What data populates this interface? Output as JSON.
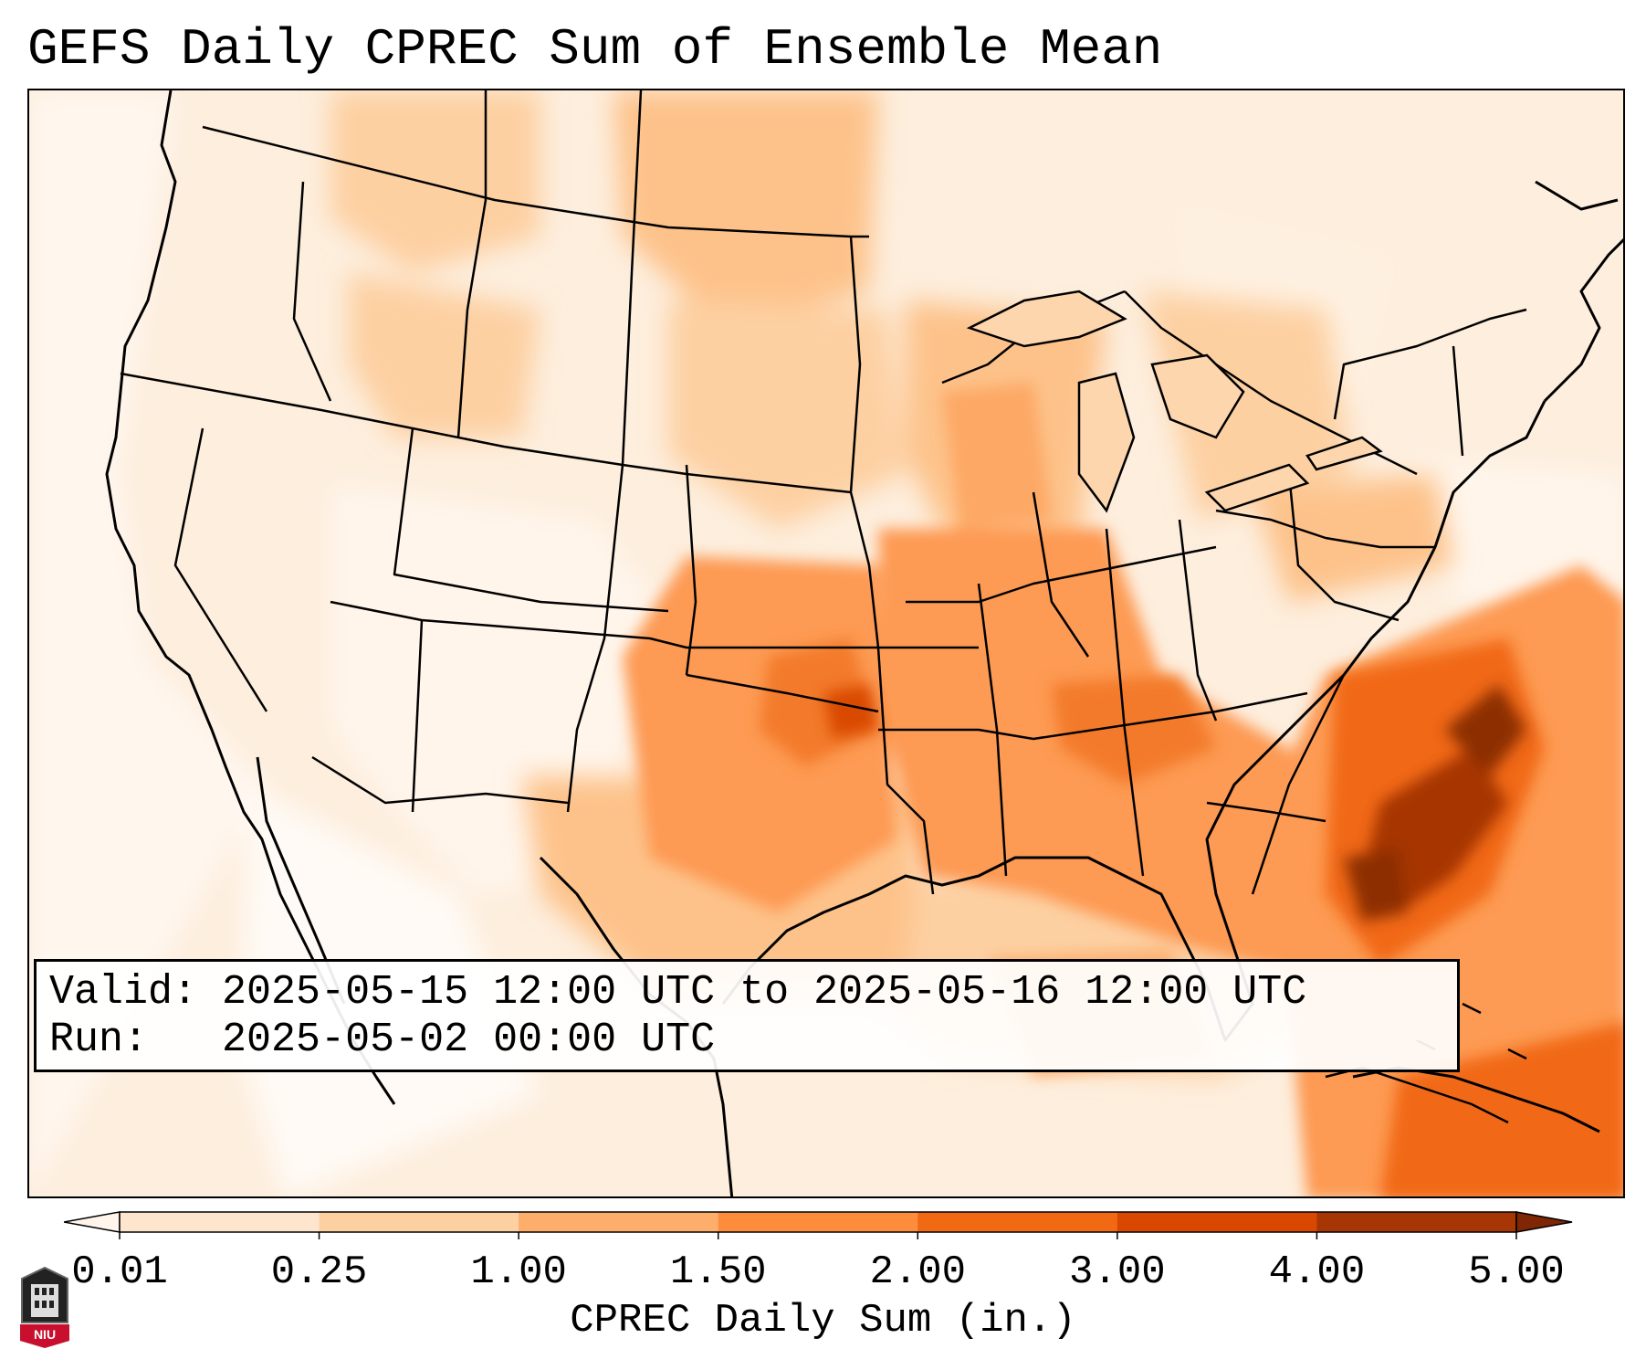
{
  "title": "GEFS Daily CPREC Sum of Ensemble Mean",
  "info_box": {
    "valid_label": "Valid:",
    "valid_value": "2025-05-15 12:00 UTC to 2025-05-16 12:00 UTC",
    "run_label": "Run:",
    "run_value": "2025-05-02 00:00 UTC"
  },
  "colorbar": {
    "label": "CPREC Daily Sum (in.)",
    "ticks": [
      "0.01",
      "0.25",
      "1.00",
      "1.50",
      "2.00",
      "3.00",
      "4.00",
      "5.00"
    ],
    "colors": [
      "#fff5eb",
      "#fee6ce",
      "#fdd0a2",
      "#fdae6b",
      "#fd8d3c",
      "#f16913",
      "#d94801",
      "#a63603",
      "#7f2704"
    ],
    "extend": "both"
  },
  "logo": {
    "text": "NIU",
    "icon": "niu-logo-icon"
  },
  "map": {
    "projection": "lambert-conformal-conus",
    "region": "Continental United States",
    "legend_placement": "bottom",
    "max_precip_area": "Carolinas coast offshore"
  }
}
